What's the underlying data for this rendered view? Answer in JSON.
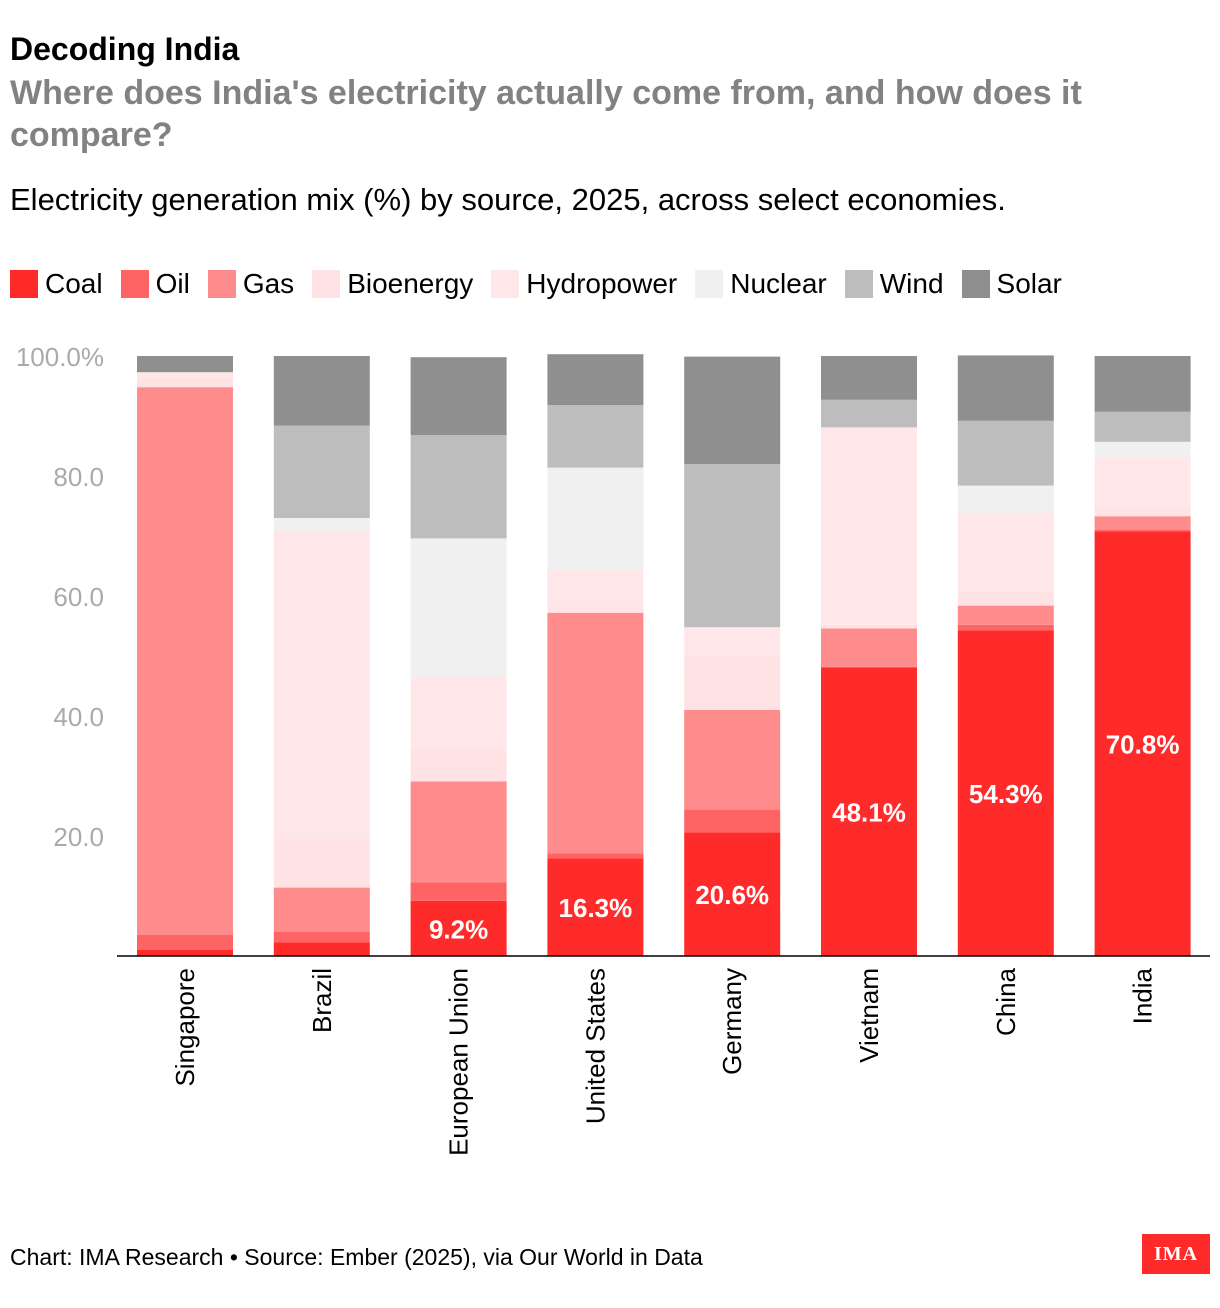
{
  "kicker": "Decoding India",
  "title": "Where does India's electricity actually come from, and how does it compare?",
  "subtitle": "Electricity generation mix (%) by source, 2025, across select economies.",
  "footer": "Chart: IMA Research • Source: Ember (2025), via Our World in Data",
  "logo_text": "IMA",
  "colors": {
    "Coal": "#ff2a2a",
    "Oil": "#ff6464",
    "Gas": "#ff8c8c",
    "Bioenergy": "#ffe2e4",
    "Hydropower": "#ffe6e8",
    "Nuclear": "#f0f0f0",
    "Wind": "#bdbdbd",
    "Solar": "#8f8f8f",
    "axis_text": "#aaaaaa",
    "label_text": "#ffffff"
  },
  "chart_data": {
    "type": "bar",
    "stacked": true,
    "categories": [
      "Singapore",
      "Brazil",
      "European Union",
      "United States",
      "Germany",
      "Vietnam",
      "China",
      "India"
    ],
    "series": [
      {
        "name": "Coal",
        "values": [
          1.0,
          2.3,
          9.2,
          16.3,
          20.6,
          48.1,
          54.3,
          70.8
        ]
      },
      {
        "name": "Oil",
        "values": [
          2.5,
          1.7,
          3.1,
          0.8,
          3.8,
          0.1,
          0.9,
          0.2
        ]
      },
      {
        "name": "Gas",
        "values": [
          91.3,
          7.4,
          16.8,
          40.1,
          16.6,
          6.4,
          3.2,
          2.3
        ]
      },
      {
        "name": "Bioenergy",
        "values": [
          1.6,
          8.1,
          5.5,
          1.1,
          8.9,
          0.6,
          2.4,
          1.5
        ]
      },
      {
        "name": "Hydropower",
        "values": [
          0.9,
          51.4,
          12.0,
          6.0,
          4.9,
          32.9,
          13.1,
          8.3
        ]
      },
      {
        "name": "Nuclear",
        "values": [
          0.0,
          2.1,
          23.0,
          17.1,
          0.0,
          0.0,
          4.5,
          2.6
        ]
      },
      {
        "name": "Wind",
        "values": [
          0.0,
          15.4,
          17.2,
          10.4,
          27.2,
          4.6,
          10.8,
          5.0
        ]
      },
      {
        "name": "Solar",
        "values": [
          2.7,
          11.6,
          13.0,
          8.5,
          17.9,
          7.3,
          10.9,
          9.3
        ]
      }
    ],
    "data_labels": {
      "series": "Coal",
      "labels": [
        "",
        "",
        "9.2%",
        "16.3%",
        "20.6%",
        "48.1%",
        "54.3%",
        "70.8%"
      ]
    },
    "yticks": [
      "20.0",
      "40.0",
      "60.0",
      "80.0",
      "100.0%"
    ],
    "ytick_values": [
      20,
      40,
      60,
      80,
      100
    ],
    "ylim": [
      0,
      100
    ],
    "xlabel": "",
    "ylabel": "",
    "grid": false,
    "legend_position": "top-left"
  }
}
